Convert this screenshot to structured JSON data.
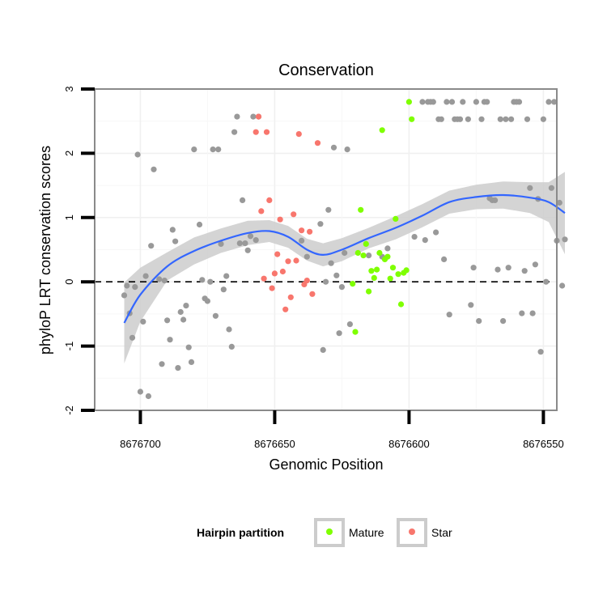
{
  "chart_data": {
    "type": "scatter",
    "title": "Conservation",
    "xlabel": "Genomic Position",
    "ylabel": "phyloP LRT conservation scores",
    "xlim": [
      8676717,
      8676545
    ],
    "ylim": [
      -2,
      3
    ],
    "x_reversed": true,
    "x_ticks": [
      8676700,
      8676650,
      8676600,
      8676550
    ],
    "x_tick_labels": [
      "8676700",
      "8676650",
      "8676600",
      "8676550"
    ],
    "y_ticks": [
      -2,
      -1,
      0,
      1,
      2,
      3
    ],
    "y_tick_labels": [
      "-2",
      "-1",
      "0",
      "1",
      "2",
      "3"
    ],
    "grid": true,
    "reference_line": {
      "y": 0,
      "style": "dashed",
      "color": "#000000"
    },
    "legend": {
      "title": "Hairpin partition",
      "position": "bottom",
      "entries": [
        {
          "name": "Mature",
          "color": "#7fff00"
        },
        {
          "name": "Star",
          "color": "#f8766d"
        }
      ]
    },
    "series": [
      {
        "name": "Other",
        "color": "#999999",
        "in_legend": false,
        "points": [
          [
            8676706,
            -0.21
          ],
          [
            8676705,
            -0.06
          ],
          [
            8676704,
            -0.49
          ],
          [
            8676703,
            -0.87
          ],
          [
            8676702,
            -0.08
          ],
          [
            8676701,
            1.98
          ],
          [
            8676700,
            -1.71
          ],
          [
            8676699,
            -0.62
          ],
          [
            8676698,
            0.09
          ],
          [
            8676697,
            -1.78
          ],
          [
            8676696,
            0.56
          ],
          [
            8676695,
            1.75
          ],
          [
            8676693,
            0.04
          ],
          [
            8676692,
            -1.28
          ],
          [
            8676691,
            0.02
          ],
          [
            8676690,
            -0.6
          ],
          [
            8676689,
            -0.9
          ],
          [
            8676688,
            0.81
          ],
          [
            8676687,
            0.63
          ],
          [
            8676686,
            -1.34
          ],
          [
            8676685,
            -0.47
          ],
          [
            8676684,
            -0.59
          ],
          [
            8676683,
            -0.37
          ],
          [
            8676682,
            -1.02
          ],
          [
            8676681,
            -1.25
          ],
          [
            8676680,
            2.06
          ],
          [
            8676678,
            0.89
          ],
          [
            8676677,
            0.03
          ],
          [
            8676676,
            -0.26
          ],
          [
            8676675,
            -0.3
          ],
          [
            8676674,
            0.0
          ],
          [
            8676673,
            2.06
          ],
          [
            8676672,
            -0.53
          ],
          [
            8676671,
            2.06
          ],
          [
            8676670,
            0.59
          ],
          [
            8676669,
            -0.12
          ],
          [
            8676668,
            0.09
          ],
          [
            8676667,
            -0.74
          ],
          [
            8676666,
            -1.01
          ],
          [
            8676665,
            2.33
          ],
          [
            8676664,
            2.57
          ],
          [
            8676663,
            0.6
          ],
          [
            8676662,
            1.27
          ],
          [
            8676661,
            0.6
          ],
          [
            8676660,
            0.49
          ],
          [
            8676659,
            0.71
          ],
          [
            8676658,
            2.57
          ],
          [
            8676657,
            0.65
          ],
          [
            8676656,
            2.57
          ],
          [
            8676640,
            0.64
          ],
          [
            8676638,
            0.39
          ],
          [
            8676633,
            0.9
          ],
          [
            8676632,
            -1.06
          ],
          [
            8676631,
            0.0
          ],
          [
            8676630,
            1.12
          ],
          [
            8676629,
            0.29
          ],
          [
            8676628,
            2.09
          ],
          [
            8676627,
            0.1
          ],
          [
            8676626,
            -0.8
          ],
          [
            8676625,
            -0.08
          ],
          [
            8676624,
            0.45
          ],
          [
            8676623,
            2.06
          ],
          [
            8676622,
            -0.66
          ],
          [
            8676615,
            0.41
          ],
          [
            8676610,
            0.39
          ],
          [
            8676608,
            0.52
          ],
          [
            8676598,
            0.7
          ],
          [
            8676595,
            2.8
          ],
          [
            8676594,
            0.65
          ],
          [
            8676593,
            2.8
          ],
          [
            8676592,
            2.8
          ],
          [
            8676591,
            2.8
          ],
          [
            8676590,
            0.77
          ],
          [
            8676589,
            2.53
          ],
          [
            8676588,
            2.53
          ],
          [
            8676587,
            0.35
          ],
          [
            8676586,
            2.8
          ],
          [
            8676585,
            -0.51
          ],
          [
            8676584,
            2.8
          ],
          [
            8676583,
            2.53
          ],
          [
            8676582,
            2.53
          ],
          [
            8676581,
            2.53
          ],
          [
            8676580,
            2.8
          ],
          [
            8676578,
            2.53
          ],
          [
            8676577,
            -0.36
          ],
          [
            8676576,
            0.22
          ],
          [
            8676575,
            2.8
          ],
          [
            8676574,
            -0.61
          ],
          [
            8676573,
            2.53
          ],
          [
            8676572,
            2.8
          ],
          [
            8676571,
            2.8
          ],
          [
            8676570,
            1.3
          ],
          [
            8676569,
            1.27
          ],
          [
            8676568,
            1.27
          ],
          [
            8676567,
            0.19
          ],
          [
            8676566,
            2.53
          ],
          [
            8676565,
            -0.61
          ],
          [
            8676564,
            2.53
          ],
          [
            8676563,
            0.22
          ],
          [
            8676562,
            2.53
          ],
          [
            8676561,
            2.8
          ],
          [
            8676560,
            2.8
          ],
          [
            8676559,
            2.8
          ],
          [
            8676558,
            -0.49
          ],
          [
            8676557,
            0.17
          ],
          [
            8676556,
            2.53
          ],
          [
            8676555,
            1.46
          ],
          [
            8676554,
            -0.49
          ],
          [
            8676553,
            0.27
          ],
          [
            8676552,
            1.29
          ],
          [
            8676551,
            -1.09
          ],
          [
            8676550,
            2.53
          ],
          [
            8676549,
            0.0
          ],
          [
            8676548,
            2.8
          ],
          [
            8676547,
            1.46
          ],
          [
            8676546,
            2.8
          ],
          [
            8676545,
            0.64
          ],
          [
            8676544,
            1.23
          ],
          [
            8676543,
            -0.06
          ],
          [
            8676542,
            0.66
          ]
        ]
      },
      {
        "name": "Mature",
        "color": "#7fff00",
        "in_legend": true,
        "points": [
          [
            8676621,
            -0.03
          ],
          [
            8676620,
            -0.78
          ],
          [
            8676619,
            0.45
          ],
          [
            8676618,
            1.12
          ],
          [
            8676617,
            0.41
          ],
          [
            8676616,
            0.59
          ],
          [
            8676615,
            -0.15
          ],
          [
            8676614,
            0.17
          ],
          [
            8676613,
            0.06
          ],
          [
            8676612,
            0.19
          ],
          [
            8676611,
            0.45
          ],
          [
            8676610,
            2.36
          ],
          [
            8676609,
            0.35
          ],
          [
            8676608,
            0.39
          ],
          [
            8676607,
            0.05
          ],
          [
            8676606,
            0.22
          ],
          [
            8676605,
            0.98
          ],
          [
            8676604,
            0.12
          ],
          [
            8676603,
            -0.35
          ],
          [
            8676602,
            0.14
          ],
          [
            8676601,
            0.18
          ],
          [
            8676600,
            2.8
          ],
          [
            8676599,
            2.53
          ]
        ]
      },
      {
        "name": "Star",
        "color": "#f8766d",
        "in_legend": true,
        "points": [
          [
            8676657,
            2.33
          ],
          [
            8676656,
            2.57
          ],
          [
            8676655,
            1.1
          ],
          [
            8676654,
            0.05
          ],
          [
            8676653,
            2.33
          ],
          [
            8676652,
            1.27
          ],
          [
            8676651,
            -0.1
          ],
          [
            8676650,
            0.13
          ],
          [
            8676649,
            0.43
          ],
          [
            8676648,
            0.97
          ],
          [
            8676647,
            0.16
          ],
          [
            8676646,
            -0.43
          ],
          [
            8676645,
            0.32
          ],
          [
            8676644,
            -0.24
          ],
          [
            8676643,
            1.05
          ],
          [
            8676642,
            0.33
          ],
          [
            8676641,
            2.3
          ],
          [
            8676640,
            0.8
          ],
          [
            8676639,
            -0.04
          ],
          [
            8676638,
            0.02
          ],
          [
            8676637,
            0.78
          ],
          [
            8676636,
            -0.19
          ],
          [
            8676634,
            2.16
          ]
        ]
      }
    ],
    "smooth": {
      "method": "loess",
      "color": "#3366ff",
      "band_color": "#cccccc",
      "points": [
        [
          8676706,
          -0.64,
          -1.27,
          -0.01
        ],
        [
          8676700,
          -0.2,
          -0.62,
          0.22
        ],
        [
          8676690,
          0.24,
          0.02,
          0.46
        ],
        [
          8676680,
          0.48,
          0.27,
          0.69
        ],
        [
          8676670,
          0.64,
          0.45,
          0.83
        ],
        [
          8676660,
          0.76,
          0.57,
          0.95
        ],
        [
          8676652,
          0.79,
          0.62,
          0.96
        ],
        [
          8676645,
          0.7,
          0.53,
          0.87
        ],
        [
          8676638,
          0.5,
          0.33,
          0.67
        ],
        [
          8676632,
          0.42,
          0.24,
          0.6
        ],
        [
          8676625,
          0.5,
          0.32,
          0.68
        ],
        [
          8676615,
          0.68,
          0.52,
          0.84
        ],
        [
          8676605,
          0.84,
          0.66,
          1.02
        ],
        [
          8676595,
          1.03,
          0.85,
          1.21
        ],
        [
          8676585,
          1.24,
          1.06,
          1.42
        ],
        [
          8676575,
          1.32,
          1.13,
          1.51
        ],
        [
          8676565,
          1.35,
          1.14,
          1.56
        ],
        [
          8676555,
          1.31,
          1.07,
          1.55
        ],
        [
          8676548,
          1.24,
          0.93,
          1.55
        ],
        [
          8676542,
          1.07,
          0.43,
          1.71
        ]
      ]
    }
  }
}
